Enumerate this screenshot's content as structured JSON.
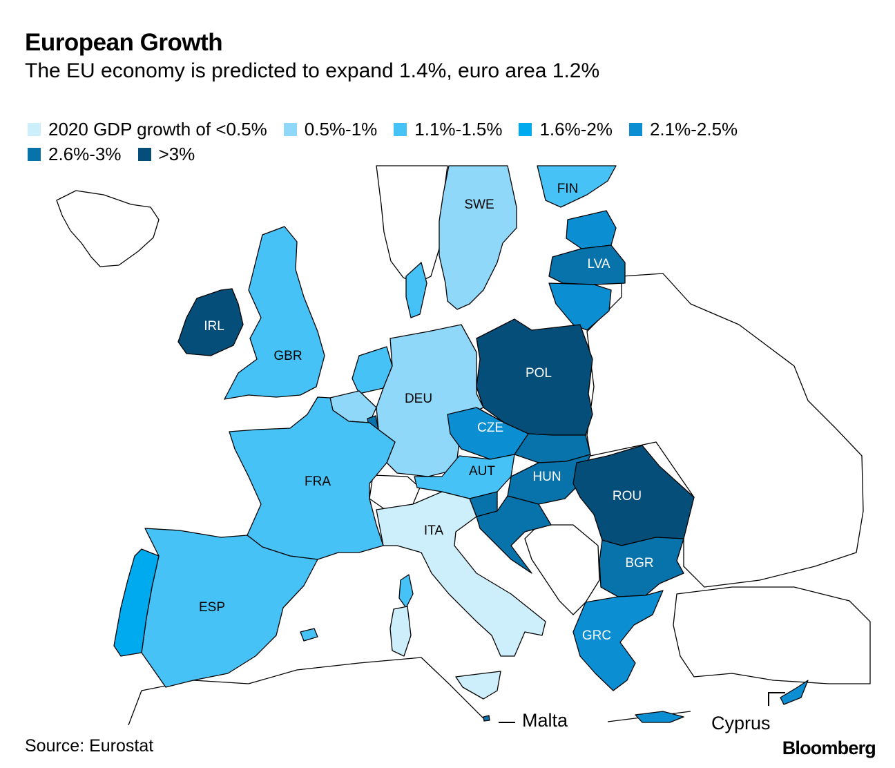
{
  "title": "European Growth",
  "subtitle": "The EU economy is predicted to expand 1.4%, euro area 1.2%",
  "legend": [
    {
      "label": "2020 GDP growth of <0.5%",
      "color": "#cdeefb"
    },
    {
      "label": "0.5%-1%",
      "color": "#8fd8fa"
    },
    {
      "label": "1.1%-1.5%",
      "color": "#47c2f7"
    },
    {
      "label": "1.6%-2%",
      "color": "#00aaee"
    },
    {
      "label": "2.1%-2.5%",
      "color": "#0b8fd2"
    },
    {
      "label": "2.6%-3%",
      "color": "#0872ab"
    },
    {
      "label": ">3%",
      "color": "#054e79"
    }
  ],
  "countries": {
    "swe": "SWE",
    "fin": "FIN",
    "lva": "LVA",
    "irl": "IRL",
    "gbr": "GBR",
    "deu": "DEU",
    "pol": "POL",
    "cze": "CZE",
    "aut": "AUT",
    "hun": "HUN",
    "fra": "FRA",
    "rou": "ROU",
    "ita": "ITA",
    "bgr": "BGR",
    "esp": "ESP",
    "grc": "GRC"
  },
  "annotations": {
    "malta": "Malta",
    "cyprus": "Cyprus"
  },
  "source": "Source: Eurostat",
  "brand": "Bloomberg"
}
